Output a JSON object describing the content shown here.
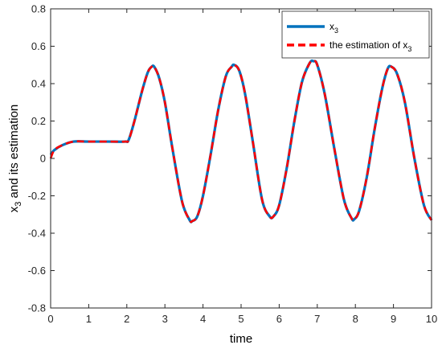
{
  "chart_data": {
    "type": "line",
    "xlabel": "time",
    "ylabel_main": "x",
    "ylabel_sub": "3",
    "ylabel_rest": " and its estimation",
    "xlim": [
      0,
      10
    ],
    "ylim": [
      -0.8,
      0.8
    ],
    "xticks": [
      0,
      1,
      2,
      3,
      4,
      5,
      6,
      7,
      8,
      9,
      10
    ],
    "yticks": [
      -0.8,
      -0.6,
      -0.4,
      -0.2,
      0,
      0.2,
      0.4,
      0.6,
      0.8
    ],
    "grid": false,
    "legend_position": "top-right",
    "series": [
      {
        "name_main": "x",
        "name_sub": "3",
        "color": "#0072BD",
        "style": "solid",
        "x": [
          0,
          0.1,
          0.3,
          0.6,
          1.0,
          1.5,
          1.95,
          2.05,
          2.2,
          2.4,
          2.55,
          2.65,
          2.72,
          2.85,
          3.0,
          3.2,
          3.45,
          3.65,
          3.72,
          3.85,
          4.0,
          4.2,
          4.4,
          4.6,
          4.75,
          4.82,
          4.95,
          5.1,
          5.3,
          5.55,
          5.75,
          5.85,
          6.0,
          6.2,
          6.4,
          6.6,
          6.8,
          6.9,
          7.0,
          7.2,
          7.45,
          7.7,
          7.9,
          7.97,
          8.1,
          8.3,
          8.5,
          8.7,
          8.85,
          8.95,
          9.1,
          9.3,
          9.55,
          9.8,
          10.0
        ],
        "y": [
          0.02,
          0.045,
          0.07,
          0.09,
          0.09,
          0.09,
          0.09,
          0.1,
          0.2,
          0.36,
          0.46,
          0.49,
          0.49,
          0.43,
          0.3,
          0.05,
          -0.23,
          -0.33,
          -0.335,
          -0.31,
          -0.2,
          0.02,
          0.26,
          0.44,
          0.49,
          0.5,
          0.47,
          0.35,
          0.1,
          -0.22,
          -0.31,
          -0.31,
          -0.25,
          -0.05,
          0.2,
          0.41,
          0.51,
          0.52,
          0.5,
          0.34,
          0.05,
          -0.22,
          -0.32,
          -0.325,
          -0.28,
          -0.1,
          0.15,
          0.37,
          0.48,
          0.49,
          0.45,
          0.3,
          0.0,
          -0.25,
          -0.33
        ]
      },
      {
        "name_main": "the estimation of x",
        "name_sub": "3",
        "color": "#FF0000",
        "style": "dashed",
        "x": [
          0,
          0.1,
          0.3,
          0.6,
          1.0,
          1.5,
          1.95,
          2.05,
          2.2,
          2.4,
          2.55,
          2.65,
          2.72,
          2.85,
          3.0,
          3.2,
          3.45,
          3.65,
          3.72,
          3.85,
          4.0,
          4.2,
          4.4,
          4.6,
          4.75,
          4.82,
          4.95,
          5.1,
          5.3,
          5.55,
          5.75,
          5.85,
          6.0,
          6.2,
          6.4,
          6.6,
          6.8,
          6.9,
          7.0,
          7.2,
          7.45,
          7.7,
          7.9,
          7.97,
          8.1,
          8.3,
          8.5,
          8.7,
          8.85,
          8.95,
          9.1,
          9.3,
          9.55,
          9.8,
          10.0
        ],
        "y": [
          0.0,
          0.045,
          0.07,
          0.09,
          0.09,
          0.09,
          0.09,
          0.1,
          0.2,
          0.36,
          0.46,
          0.49,
          0.49,
          0.43,
          0.3,
          0.05,
          -0.23,
          -0.33,
          -0.335,
          -0.31,
          -0.2,
          0.02,
          0.26,
          0.44,
          0.49,
          0.5,
          0.47,
          0.35,
          0.1,
          -0.22,
          -0.31,
          -0.31,
          -0.25,
          -0.05,
          0.2,
          0.41,
          0.51,
          0.52,
          0.5,
          0.34,
          0.05,
          -0.22,
          -0.32,
          -0.325,
          -0.28,
          -0.1,
          0.15,
          0.37,
          0.48,
          0.49,
          0.45,
          0.3,
          0.0,
          -0.25,
          -0.33
        ]
      }
    ]
  }
}
